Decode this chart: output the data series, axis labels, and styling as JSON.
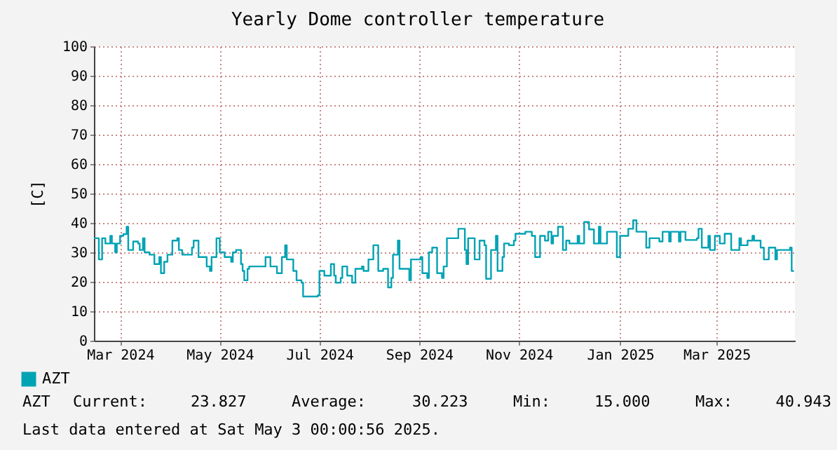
{
  "chart_data": {
    "type": "step",
    "title": "Yearly Dome controller temperature",
    "ylabel": "[C]",
    "xlim": [
      "2024-02-29",
      "2025-05-03"
    ],
    "ylim": [
      0,
      100
    ],
    "yticks": [
      0,
      10,
      20,
      30,
      40,
      50,
      60,
      70,
      80,
      90,
      100
    ],
    "xticks": [
      {
        "value": "2024-03-16",
        "label": "Mar 2024"
      },
      {
        "value": "2024-05-16",
        "label": "May 2024"
      },
      {
        "value": "2024-07-16",
        "label": "Jul 2024"
      },
      {
        "value": "2024-09-15",
        "label": "Sep 2024"
      },
      {
        "value": "2024-11-15",
        "label": "Nov 2024"
      },
      {
        "value": "2025-01-16",
        "label": "Jan 2025"
      },
      {
        "value": "2025-03-16",
        "label": "Mar 2025"
      }
    ],
    "grid": true,
    "legend": "bottom left",
    "annotations": [
      "AZT",
      "Current:",
      "23.827",
      "Average:",
      "30.223",
      "Min:",
      "15.000",
      "Max:",
      "40.943",
      "Last data entered at Sat May  3 00:00:56 2025."
    ],
    "series": [
      {
        "name": "AZT",
        "color": "#00a3b4",
        "x": [
          "2024-02-29",
          "2024-03-03",
          "2024-03-05",
          "2024-03-07",
          "2024-03-10",
          "2024-03-11",
          "2024-03-13",
          "2024-03-14",
          "2024-03-16",
          "2024-03-18",
          "2024-03-20",
          "2024-03-21",
          "2024-03-24",
          "2024-03-27",
          "2024-03-28",
          "2024-03-30",
          "2024-03-31",
          "2024-04-03",
          "2024-04-06",
          "2024-04-09",
          "2024-04-10",
          "2024-04-12",
          "2024-04-14",
          "2024-04-17",
          "2024-04-20",
          "2024-04-21",
          "2024-04-23",
          "2024-04-27",
          "2024-04-29",
          "2024-04-30",
          "2024-05-03",
          "2024-05-07",
          "2024-05-08",
          "2024-05-10",
          "2024-05-11",
          "2024-05-14",
          "2024-05-16",
          "2024-05-19",
          "2024-05-23",
          "2024-05-24",
          "2024-05-26",
          "2024-05-29",
          "2024-05-30",
          "2024-05-31",
          "2024-06-02",
          "2024-06-03",
          "2024-06-10",
          "2024-06-13",
          "2024-06-16",
          "2024-06-20",
          "2024-06-23",
          "2024-06-25",
          "2024-06-26",
          "2024-06-30",
          "2024-07-02",
          "2024-07-05",
          "2024-07-06",
          "2024-07-12",
          "2024-07-15",
          "2024-07-16",
          "2024-07-19",
          "2024-07-23",
          "2024-07-25",
          "2024-07-26",
          "2024-07-29",
          "2024-07-30",
          "2024-08-02",
          "2024-08-05",
          "2024-08-07",
          "2024-08-11",
          "2024-08-12",
          "2024-08-15",
          "2024-08-18",
          "2024-08-21",
          "2024-08-24",
          "2024-08-27",
          "2024-08-29",
          "2024-08-30",
          "2024-09-02",
          "2024-09-03",
          "2024-09-09",
          "2024-09-10",
          "2024-09-16",
          "2024-09-17",
          "2024-09-20",
          "2024-09-21",
          "2024-09-23",
          "2024-09-26",
          "2024-09-29",
          "2024-09-30",
          "2024-10-02",
          "2024-10-09",
          "2024-10-13",
          "2024-10-14",
          "2024-10-15",
          "2024-10-19",
          "2024-10-22",
          "2024-10-25",
          "2024-10-26",
          "2024-10-29",
          "2024-11-01",
          "2024-11-02",
          "2024-11-05",
          "2024-11-06",
          "2024-11-09",
          "2024-11-12",
          "2024-11-13",
          "2024-11-19",
          "2024-11-23",
          "2024-11-25",
          "2024-11-28",
          "2024-12-01",
          "2024-12-03",
          "2024-12-05",
          "2024-12-06",
          "2024-12-09",
          "2024-12-12",
          "2024-12-14",
          "2024-12-16",
          "2024-12-21",
          "2024-12-22",
          "2024-12-25",
          "2024-12-28",
          "2024-12-31",
          "2025-01-03",
          "2025-01-04",
          "2025-01-08",
          "2025-01-11",
          "2025-01-14",
          "2025-01-16",
          "2025-01-21",
          "2025-01-24",
          "2025-01-26",
          "2025-01-29",
          "2025-02-01",
          "2025-02-03",
          "2025-02-09",
          "2025-02-11",
          "2025-02-15",
          "2025-02-16",
          "2025-02-21",
          "2025-02-22",
          "2025-02-25",
          "2025-03-04",
          "2025-03-05",
          "2025-03-07",
          "2025-03-11",
          "2025-03-12",
          "2025-03-15",
          "2025-03-18",
          "2025-03-21",
          "2025-03-25",
          "2025-03-30",
          "2025-03-31",
          "2025-04-04",
          "2025-04-07",
          "2025-04-08",
          "2025-04-12",
          "2025-04-14",
          "2025-04-17",
          "2025-04-21",
          "2025-04-22",
          "2025-04-30",
          "2025-05-01",
          "2025-05-02"
        ],
        "values": [
          34.8,
          27.6,
          34.8,
          33.0,
          35.6,
          33.0,
          30.0,
          33.0,
          35.6,
          36.2,
          38.7,
          30.8,
          33.7,
          33.0,
          30.8,
          34.8,
          30.0,
          29.2,
          26.0,
          28.4,
          22.9,
          26.8,
          29.2,
          34.0,
          34.8,
          30.8,
          29.2,
          29.2,
          31.6,
          34.0,
          28.4,
          28.4,
          25.2,
          23.7,
          28.4,
          34.8,
          30.0,
          28.4,
          26.8,
          30.0,
          30.8,
          26.0,
          23.7,
          20.5,
          24.4,
          25.2,
          25.2,
          28.4,
          25.2,
          22.9,
          28.4,
          32.4,
          27.6,
          23.7,
          20.5,
          19.7,
          15.0,
          15.0,
          15.4,
          23.7,
          22.1,
          26.0,
          22.1,
          19.7,
          21.3,
          25.2,
          22.1,
          19.7,
          24.4,
          25.2,
          23.7,
          27.6,
          32.4,
          23.7,
          24.4,
          18.1,
          21.3,
          29.2,
          34.0,
          24.4,
          20.5,
          27.6,
          28.4,
          22.9,
          21.3,
          30.0,
          31.6,
          22.9,
          21.3,
          25.2,
          34.8,
          38.0,
          30.8,
          26.0,
          34.8,
          27.6,
          34.0,
          32.4,
          21.0,
          30.8,
          35.6,
          23.7,
          28.4,
          33.0,
          32.4,
          34.0,
          36.3,
          37.0,
          35.6,
          28.4,
          35.6,
          34.0,
          37.0,
          33.0,
          35.6,
          38.7,
          30.8,
          34.0,
          33.0,
          35.6,
          33.0,
          40.3,
          37.8,
          33.0,
          38.7,
          33.0,
          37.0,
          37.0,
          28.4,
          35.6,
          38.0,
          40.9,
          37.0,
          37.0,
          31.6,
          34.8,
          33.7,
          37.0,
          33.7,
          37.0,
          33.7,
          37.0,
          34.2,
          34.8,
          38.0,
          31.6,
          35.6,
          30.8,
          35.6,
          33.0,
          36.3,
          30.8,
          34.8,
          32.4,
          34.0,
          35.6,
          34.0,
          31.6,
          27.6,
          31.6,
          27.6,
          30.8,
          31.6,
          23.7,
          23.8
        ]
      }
    ]
  }
}
